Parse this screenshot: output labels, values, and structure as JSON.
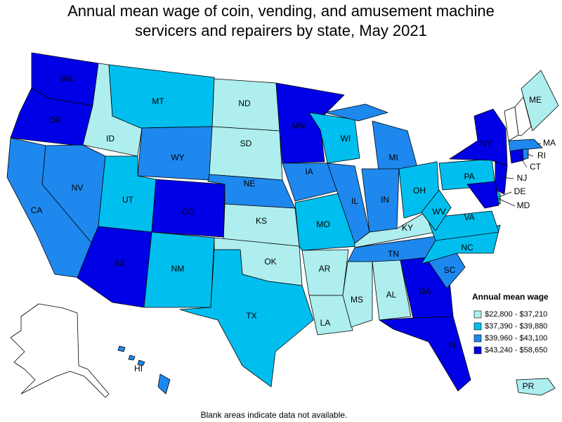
{
  "title": [
    "Annual mean wage of coin, vending, and amusement machine",
    "servicers and repairers by state, May 2021"
  ],
  "legend": {
    "title": "Annual mean wage",
    "items": [
      {
        "label": "$22,800 - $37,210",
        "color": "#aeeeee"
      },
      {
        "label": "$37,390 - $39,880",
        "color": "#00bfee"
      },
      {
        "label": "$39,960 - $43,100",
        "color": "#1e88ee"
      },
      {
        "label": "$43,240 - $58,650",
        "color": "#0000e6"
      }
    ]
  },
  "states": [
    {
      "label": "WA",
      "color": "#0000e6"
    },
    {
      "label": "OR",
      "color": "#0000e6"
    },
    {
      "label": "CA",
      "color": "#1e88ee"
    },
    {
      "label": "ID",
      "color": "#aeeeee"
    },
    {
      "label": "NV",
      "color": "#1e88ee"
    },
    {
      "label": "MT",
      "color": "#00bfee"
    },
    {
      "label": "WY",
      "color": "#1e88ee"
    },
    {
      "label": "UT",
      "color": "#00bfee"
    },
    {
      "label": "AZ",
      "color": "#0000e6"
    },
    {
      "label": "CO",
      "color": "#0000e6"
    },
    {
      "label": "NM",
      "color": "#00bfee"
    },
    {
      "label": "ND",
      "color": "#aeeeee"
    },
    {
      "label": "SD",
      "color": "#aeeeee"
    },
    {
      "label": "NE",
      "color": "#1e88ee"
    },
    {
      "label": "KS",
      "color": "#aeeeee"
    },
    {
      "label": "OK",
      "color": "#aeeeee"
    },
    {
      "label": "TX",
      "color": "#00bfee"
    },
    {
      "label": "MN",
      "color": "#0000e6"
    },
    {
      "label": "IA",
      "color": "#1e88ee"
    },
    {
      "label": "MO",
      "color": "#00bfee"
    },
    {
      "label": "AR",
      "color": "#aeeeee"
    },
    {
      "label": "LA",
      "color": "#aeeeee"
    },
    {
      "label": "WI",
      "color": "#00bfee"
    },
    {
      "label": "IL",
      "color": "#1e88ee"
    },
    {
      "label": "MI",
      "color": "#1e88ee"
    },
    {
      "label": "IN",
      "color": "#1e88ee"
    },
    {
      "label": "OH",
      "color": "#00bfee"
    },
    {
      "label": "KY",
      "color": "#aeeeee"
    },
    {
      "label": "TN",
      "color": "#1e88ee"
    },
    {
      "label": "MS",
      "color": "#aeeeee"
    },
    {
      "label": "AL",
      "color": "#aeeeee"
    },
    {
      "label": "GA",
      "color": "#0000e6"
    },
    {
      "label": "FL",
      "color": "#0000e6"
    },
    {
      "label": "SC",
      "color": "#1e88ee"
    },
    {
      "label": "NC",
      "color": "#00bfee"
    },
    {
      "label": "VA",
      "color": "#00bfee"
    },
    {
      "label": "WV",
      "color": "#00bfee"
    },
    {
      "label": "PA",
      "color": "#00bfee"
    },
    {
      "label": "NY",
      "color": "#0000e6"
    },
    {
      "label": "ME",
      "color": "#aeeeee"
    },
    {
      "label": "MA",
      "color": "#1e88ee"
    },
    {
      "label": "CT",
      "color": "#0000e6"
    },
    {
      "label": "RI",
      "color": "#1e88ee"
    },
    {
      "label": "NJ",
      "color": "#0000e6"
    },
    {
      "label": "DE",
      "color": "#00bfee"
    },
    {
      "label": "MD",
      "color": "#0000e6"
    },
    {
      "label": "HI",
      "color": "#1e88ee"
    },
    {
      "label": "PR",
      "color": "#aeeeee"
    }
  ],
  "footnote": "Blank areas indicate data not available."
}
